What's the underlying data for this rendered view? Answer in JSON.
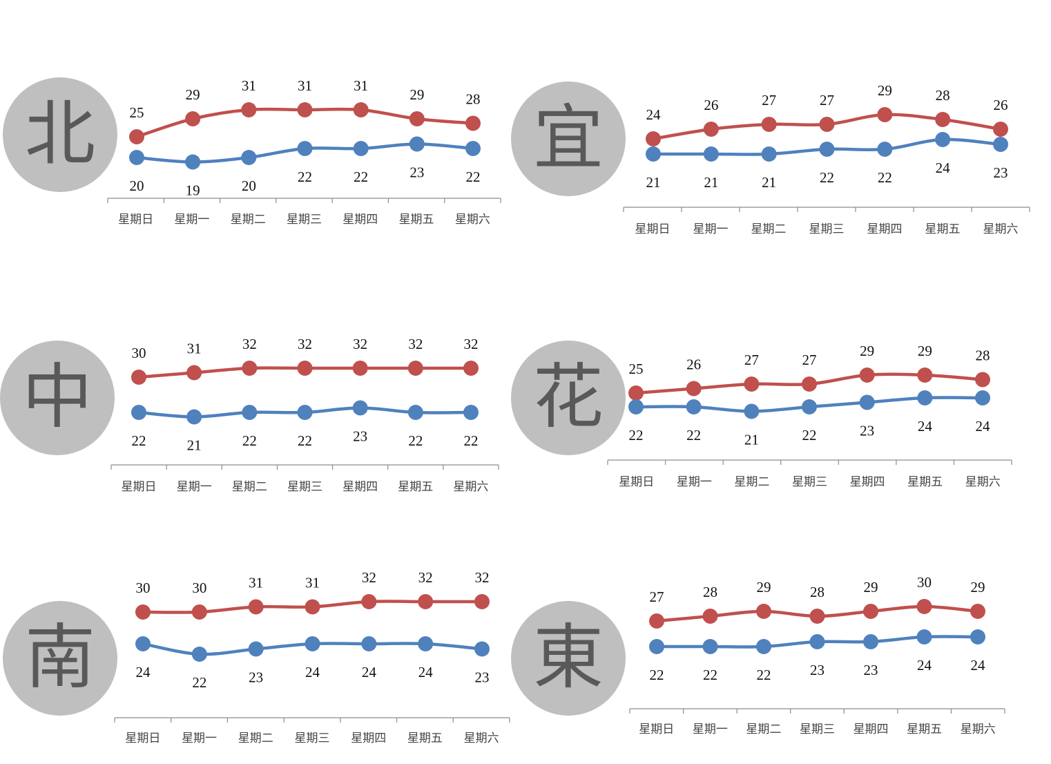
{
  "colors": {
    "high": "#c0504d",
    "low": "#4f81bd",
    "badge": "#bfbfbf",
    "badge_text": "#595959"
  },
  "chart_data": [
    {
      "type": "line",
      "region": "北",
      "categories": [
        "星期日",
        "星期一",
        "星期二",
        "星期三",
        "星期四",
        "星期五",
        "星期六"
      ],
      "series": [
        {
          "values": [
            25,
            29,
            31,
            31,
            31,
            29,
            28
          ]
        },
        {
          "values": [
            20,
            19,
            20,
            22,
            22,
            23,
            22
          ]
        }
      ]
    },
    {
      "type": "line",
      "region": "宜",
      "categories": [
        "星期日",
        "星期一",
        "星期二",
        "星期三",
        "星期四",
        "星期五",
        "星期六"
      ],
      "series": [
        {
          "values": [
            24,
            26,
            27,
            27,
            29,
            28,
            26
          ]
        },
        {
          "values": [
            21,
            21,
            21,
            22,
            22,
            24,
            23
          ]
        }
      ]
    },
    {
      "type": "line",
      "region": "中",
      "categories": [
        "星期日",
        "星期一",
        "星期二",
        "星期三",
        "星期四",
        "星期五",
        "星期六"
      ],
      "series": [
        {
          "values": [
            30,
            31,
            32,
            32,
            32,
            32,
            32
          ]
        },
        {
          "values": [
            22,
            21,
            22,
            22,
            23,
            22,
            22
          ]
        }
      ]
    },
    {
      "type": "line",
      "region": "花",
      "categories": [
        "星期日",
        "星期一",
        "星期二",
        "星期三",
        "星期四",
        "星期五",
        "星期六"
      ],
      "series": [
        {
          "values": [
            25,
            26,
            27,
            27,
            29,
            29,
            28
          ]
        },
        {
          "values": [
            22,
            22,
            21,
            22,
            23,
            24,
            24
          ]
        }
      ]
    },
    {
      "type": "line",
      "region": "南",
      "categories": [
        "星期日",
        "星期一",
        "星期二",
        "星期三",
        "星期四",
        "星期五",
        "星期六"
      ],
      "series": [
        {
          "values": [
            30,
            30,
            31,
            31,
            32,
            32,
            32
          ]
        },
        {
          "values": [
            24,
            22,
            23,
            24,
            24,
            24,
            23
          ]
        }
      ]
    },
    {
      "type": "line",
      "region": "東",
      "categories": [
        "星期日",
        "星期一",
        "星期二",
        "星期三",
        "星期四",
        "星期五",
        "星期六"
      ],
      "series": [
        {
          "values": [
            27,
            28,
            29,
            28,
            29,
            30,
            29
          ]
        },
        {
          "values": [
            22,
            22,
            22,
            23,
            23,
            24,
            24
          ]
        }
      ]
    }
  ]
}
